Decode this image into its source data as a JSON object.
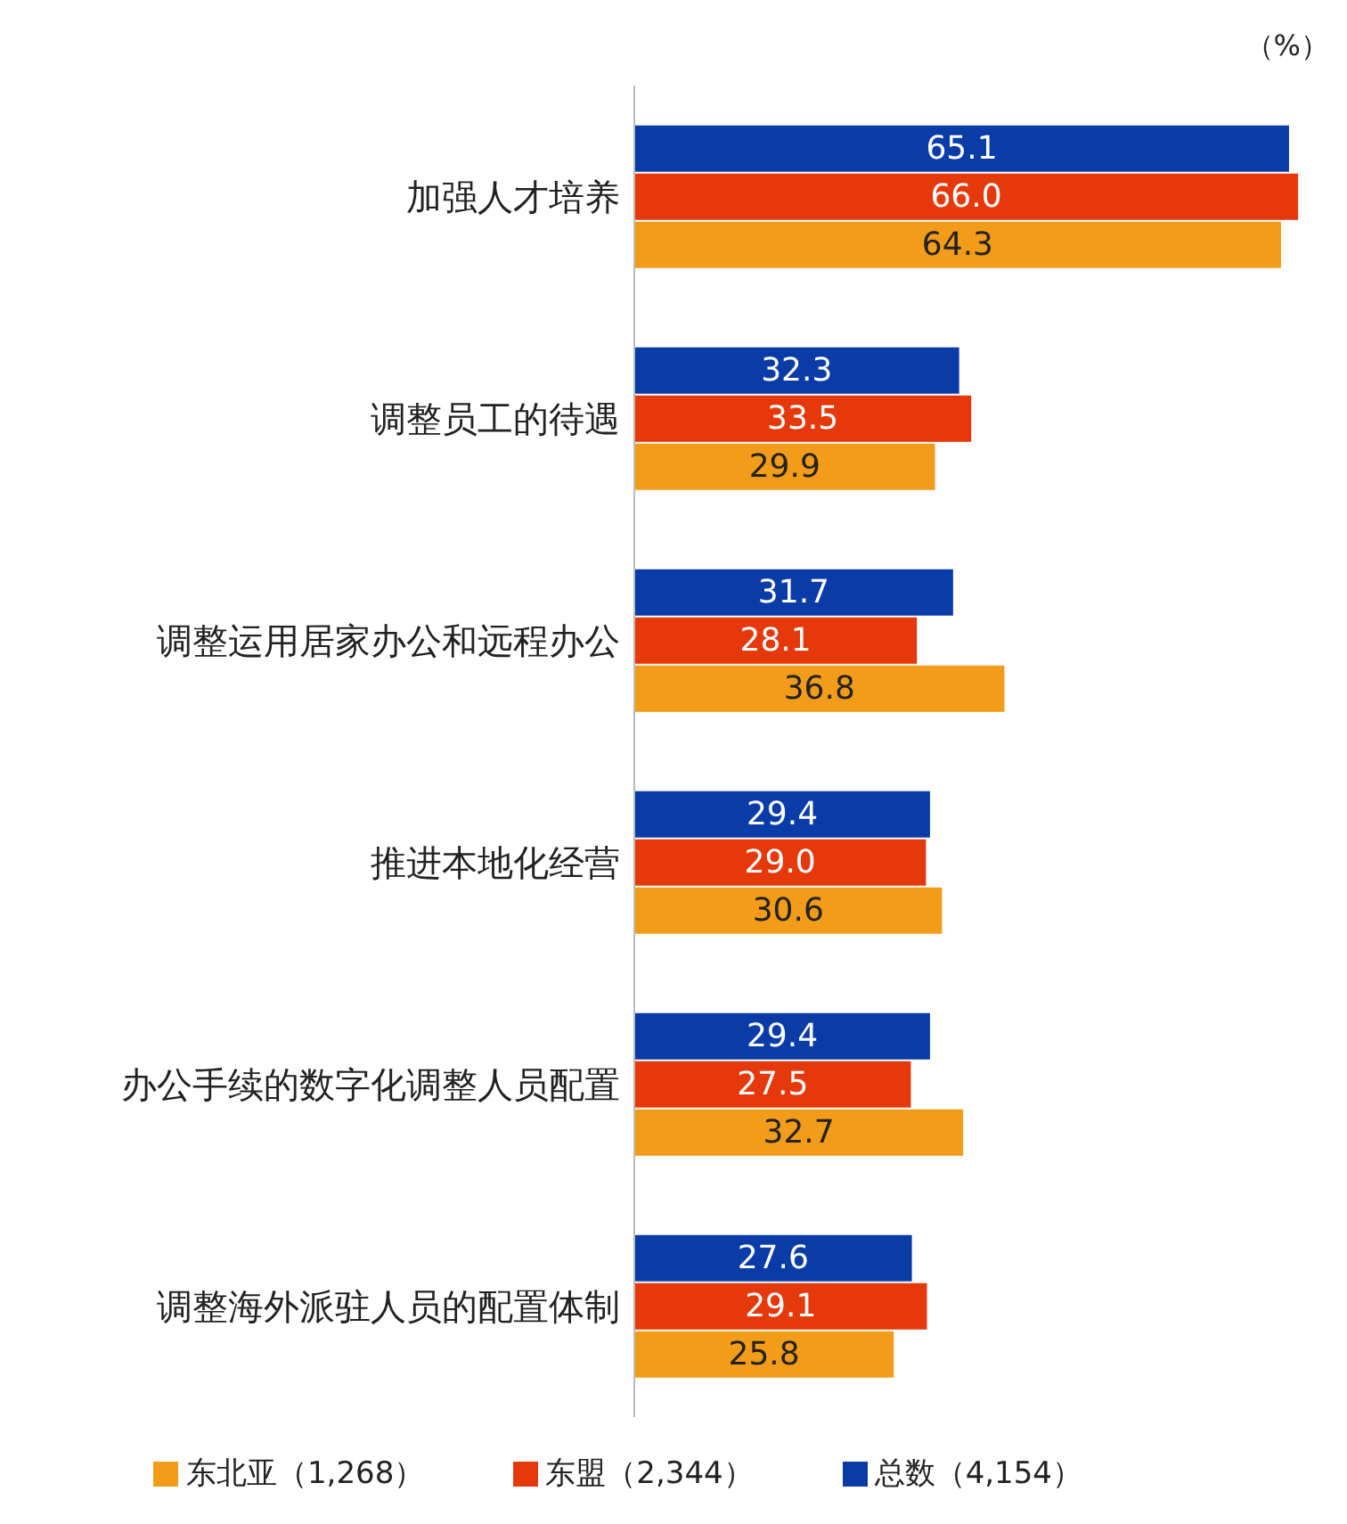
{
  "chart_data": {
    "type": "bar",
    "orientation": "horizontal",
    "categories": [
      "加强人才培养",
      "调整员工的待遇",
      "调整运用居家办公和远程办公",
      "推进本地化经营",
      "办公手续的数字化调整人员配置",
      "调整海外派驻人员的配置体制"
    ],
    "series": [
      {
        "name": "总数（4,154）",
        "color": "#0a3ca8",
        "values": [
          65.1,
          32.3,
          31.7,
          29.4,
          29.4,
          27.6
        ],
        "value_labels": [
          "65.1",
          "32.3",
          "31.7",
          "29.4",
          "29.4",
          "27.6"
        ]
      },
      {
        "name": "东盟（2,344）",
        "color": "#e5390b",
        "values": [
          66.0,
          33.5,
          28.1,
          29.0,
          27.5,
          29.1
        ],
        "value_labels": [
          "66.0",
          "33.5",
          "28.1",
          "29.0",
          "27.5",
          "29.1"
        ]
      },
      {
        "name": "东北亚（1,268）",
        "color": "#f39c1a",
        "values": [
          64.3,
          29.9,
          36.8,
          30.6,
          32.7,
          25.8
        ],
        "value_labels": [
          "64.3",
          "29.9",
          "36.8",
          "30.6",
          "32.7",
          "25.8"
        ]
      }
    ],
    "legend": "bottom",
    "tick_labels": "y",
    "annotations": [
      "（%）"
    ]
  }
}
